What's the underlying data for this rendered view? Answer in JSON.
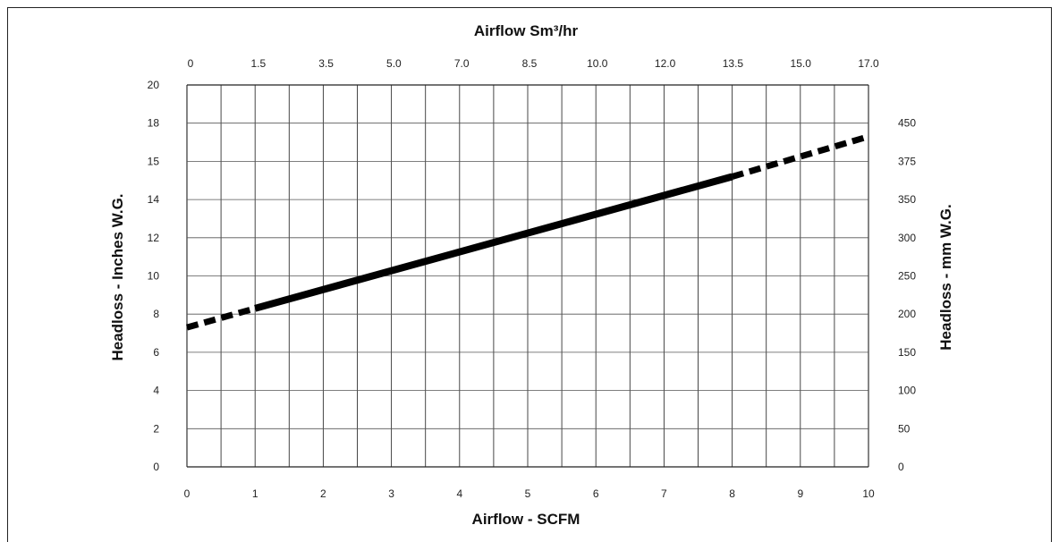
{
  "chart_data": {
    "type": "line",
    "top_axis": {
      "label": "Airflow Sm³/hr",
      "ticks": [
        "0",
        "1.5",
        "3.5",
        "5.0",
        "7.0",
        "8.5",
        "10.0",
        "12.0",
        "13.5",
        "15.0",
        "17.0"
      ]
    },
    "bottom_axis": {
      "label": "Airflow - SCFM",
      "ticks": [
        "0",
        "1",
        "2",
        "3",
        "4",
        "5",
        "6",
        "7",
        "8",
        "9",
        "10"
      ],
      "range": [
        0,
        10
      ]
    },
    "left_axis": {
      "label": "Headloss - Inches W.G.",
      "ticks": [
        "0",
        "2",
        "4",
        "6",
        "8",
        "10",
        "12",
        "14",
        "15",
        "18",
        "20"
      ]
    },
    "right_axis": {
      "label": "Headloss - mm W.G.",
      "ticks": [
        "0",
        "50",
        "100",
        "150",
        "200",
        "250",
        "300",
        "350",
        "375",
        "450"
      ]
    },
    "series": [
      {
        "style": "solid",
        "x": [
          1,
          8
        ],
        "y": [
          8.3,
          15.2
        ]
      },
      {
        "style": "dashed",
        "x": [
          0,
          1
        ],
        "y": [
          7.3,
          8.3
        ]
      },
      {
        "style": "dashed",
        "x": [
          8,
          10
        ],
        "y": [
          15.2,
          17.3
        ]
      }
    ],
    "grid": true,
    "line_color": "#000000"
  }
}
